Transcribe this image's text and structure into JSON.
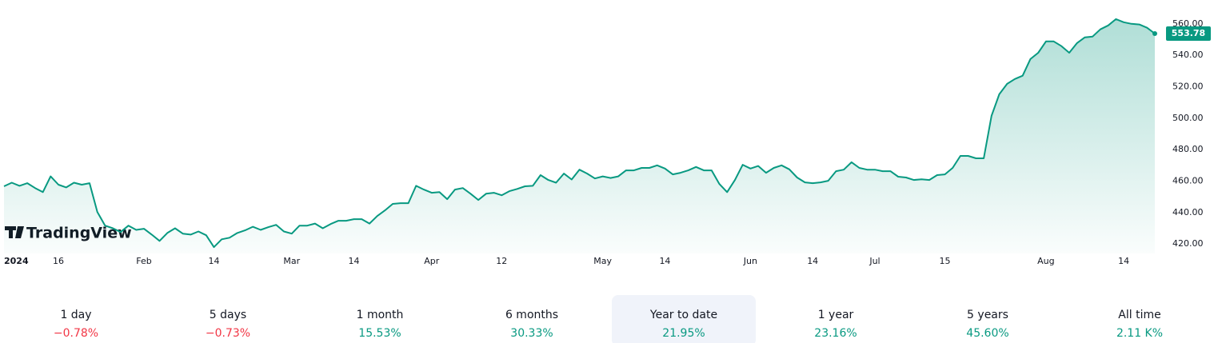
{
  "chart_data": {
    "type": "line",
    "watermark": "TradingView",
    "color": "#089981",
    "values": [
      456.7,
      459,
      457,
      458.7,
      455.6,
      453,
      463,
      457.7,
      456,
      459,
      457.7,
      458.7,
      440.4,
      431.7,
      430,
      427.6,
      431.7,
      429,
      429.7,
      426,
      422,
      427,
      430,
      426.6,
      426,
      428,
      425.6,
      418,
      423,
      424,
      427,
      428.7,
      431,
      429,
      430.7,
      432.2,
      428,
      426.6,
      431.7,
      431.7,
      433,
      430,
      432.7,
      434.8,
      434.8,
      435.8,
      435.8,
      433,
      437.8,
      441.4,
      445.5,
      446,
      446,
      457,
      454.6,
      452.6,
      453,
      448.5,
      454.6,
      455.6,
      452,
      448,
      452,
      452.6,
      451,
      453.6,
      455,
      456.7,
      457,
      463.8,
      460.7,
      459,
      464.8,
      461,
      467.3,
      464.8,
      461.7,
      463,
      462,
      463,
      466.8,
      466.8,
      468.4,
      468.4,
      470,
      468,
      464.3,
      465.3,
      466.8,
      469,
      466.8,
      466.8,
      458.2,
      453,
      460.7,
      470.4,
      468,
      469.6,
      465.3,
      468.4,
      470,
      467.5,
      462.3,
      459.2,
      458.7,
      459.2,
      460.2,
      466.3,
      467.3,
      472,
      468.4,
      467.3,
      467.3,
      466.3,
      466.3,
      462.8,
      462.3,
      460.7,
      461.2,
      460.7,
      463.8,
      464.3,
      468.4,
      476,
      476,
      474.5,
      474.5,
      501.5,
      515.2,
      521.8,
      524.9,
      527,
      537.6,
      541.6,
      548.8,
      548.8,
      545.8,
      541.6,
      547.8,
      551.4,
      551.9,
      556.5,
      559,
      563,
      561,
      560,
      559.6,
      557.5,
      553.78
    ],
    "xticks": [
      {
        "value": 0,
        "label": "2024"
      },
      {
        "value": 7,
        "label": "16"
      },
      {
        "value": 18,
        "label": "Feb"
      },
      {
        "value": 27,
        "label": "14"
      },
      {
        "value": 37,
        "label": "Mar"
      },
      {
        "value": 45,
        "label": "14"
      },
      {
        "value": 55,
        "label": "Apr"
      },
      {
        "value": 64,
        "label": "12"
      },
      {
        "value": 77,
        "label": "May"
      },
      {
        "value": 85,
        "label": "14"
      },
      {
        "value": 96,
        "label": "Jun"
      },
      {
        "value": 104,
        "label": "14"
      },
      {
        "value": 112,
        "label": "Jul"
      },
      {
        "value": 121,
        "label": "15"
      },
      {
        "value": 134,
        "label": "Aug"
      },
      {
        "value": 144,
        "label": "14"
      }
    ],
    "ylim": [
      414,
      566
    ],
    "yticks": [
      {
        "value": 420,
        "label": "420.00"
      },
      {
        "value": 440,
        "label": "440.00"
      },
      {
        "value": 460,
        "label": "460.00"
      },
      {
        "value": 480,
        "label": "480.00"
      },
      {
        "value": 500,
        "label": "500.00"
      },
      {
        "value": 520,
        "label": "520.00"
      },
      {
        "value": 540,
        "label": "540.00"
      },
      {
        "value": 560,
        "label": "560.00"
      }
    ]
  },
  "periods": {
    "selected": 4,
    "positive_color": "#089981",
    "negative_color": "#f23645",
    "items": [
      {
        "label": "1 day",
        "change": "−0.78%",
        "negative": true
      },
      {
        "label": "5 days",
        "change": "−0.73%",
        "negative": true
      },
      {
        "label": "1 month",
        "change": "15.53%",
        "negative": false
      },
      {
        "label": "6 months",
        "change": "30.33%",
        "negative": false
      },
      {
        "label": "Year to date",
        "change": "21.95%",
        "negative": false
      },
      {
        "label": "1 year",
        "change": "23.16%",
        "negative": false
      },
      {
        "label": "5 years",
        "change": "45.60%",
        "negative": false
      },
      {
        "label": "All time",
        "change": "2.11 K%",
        "negative": false
      }
    ]
  }
}
